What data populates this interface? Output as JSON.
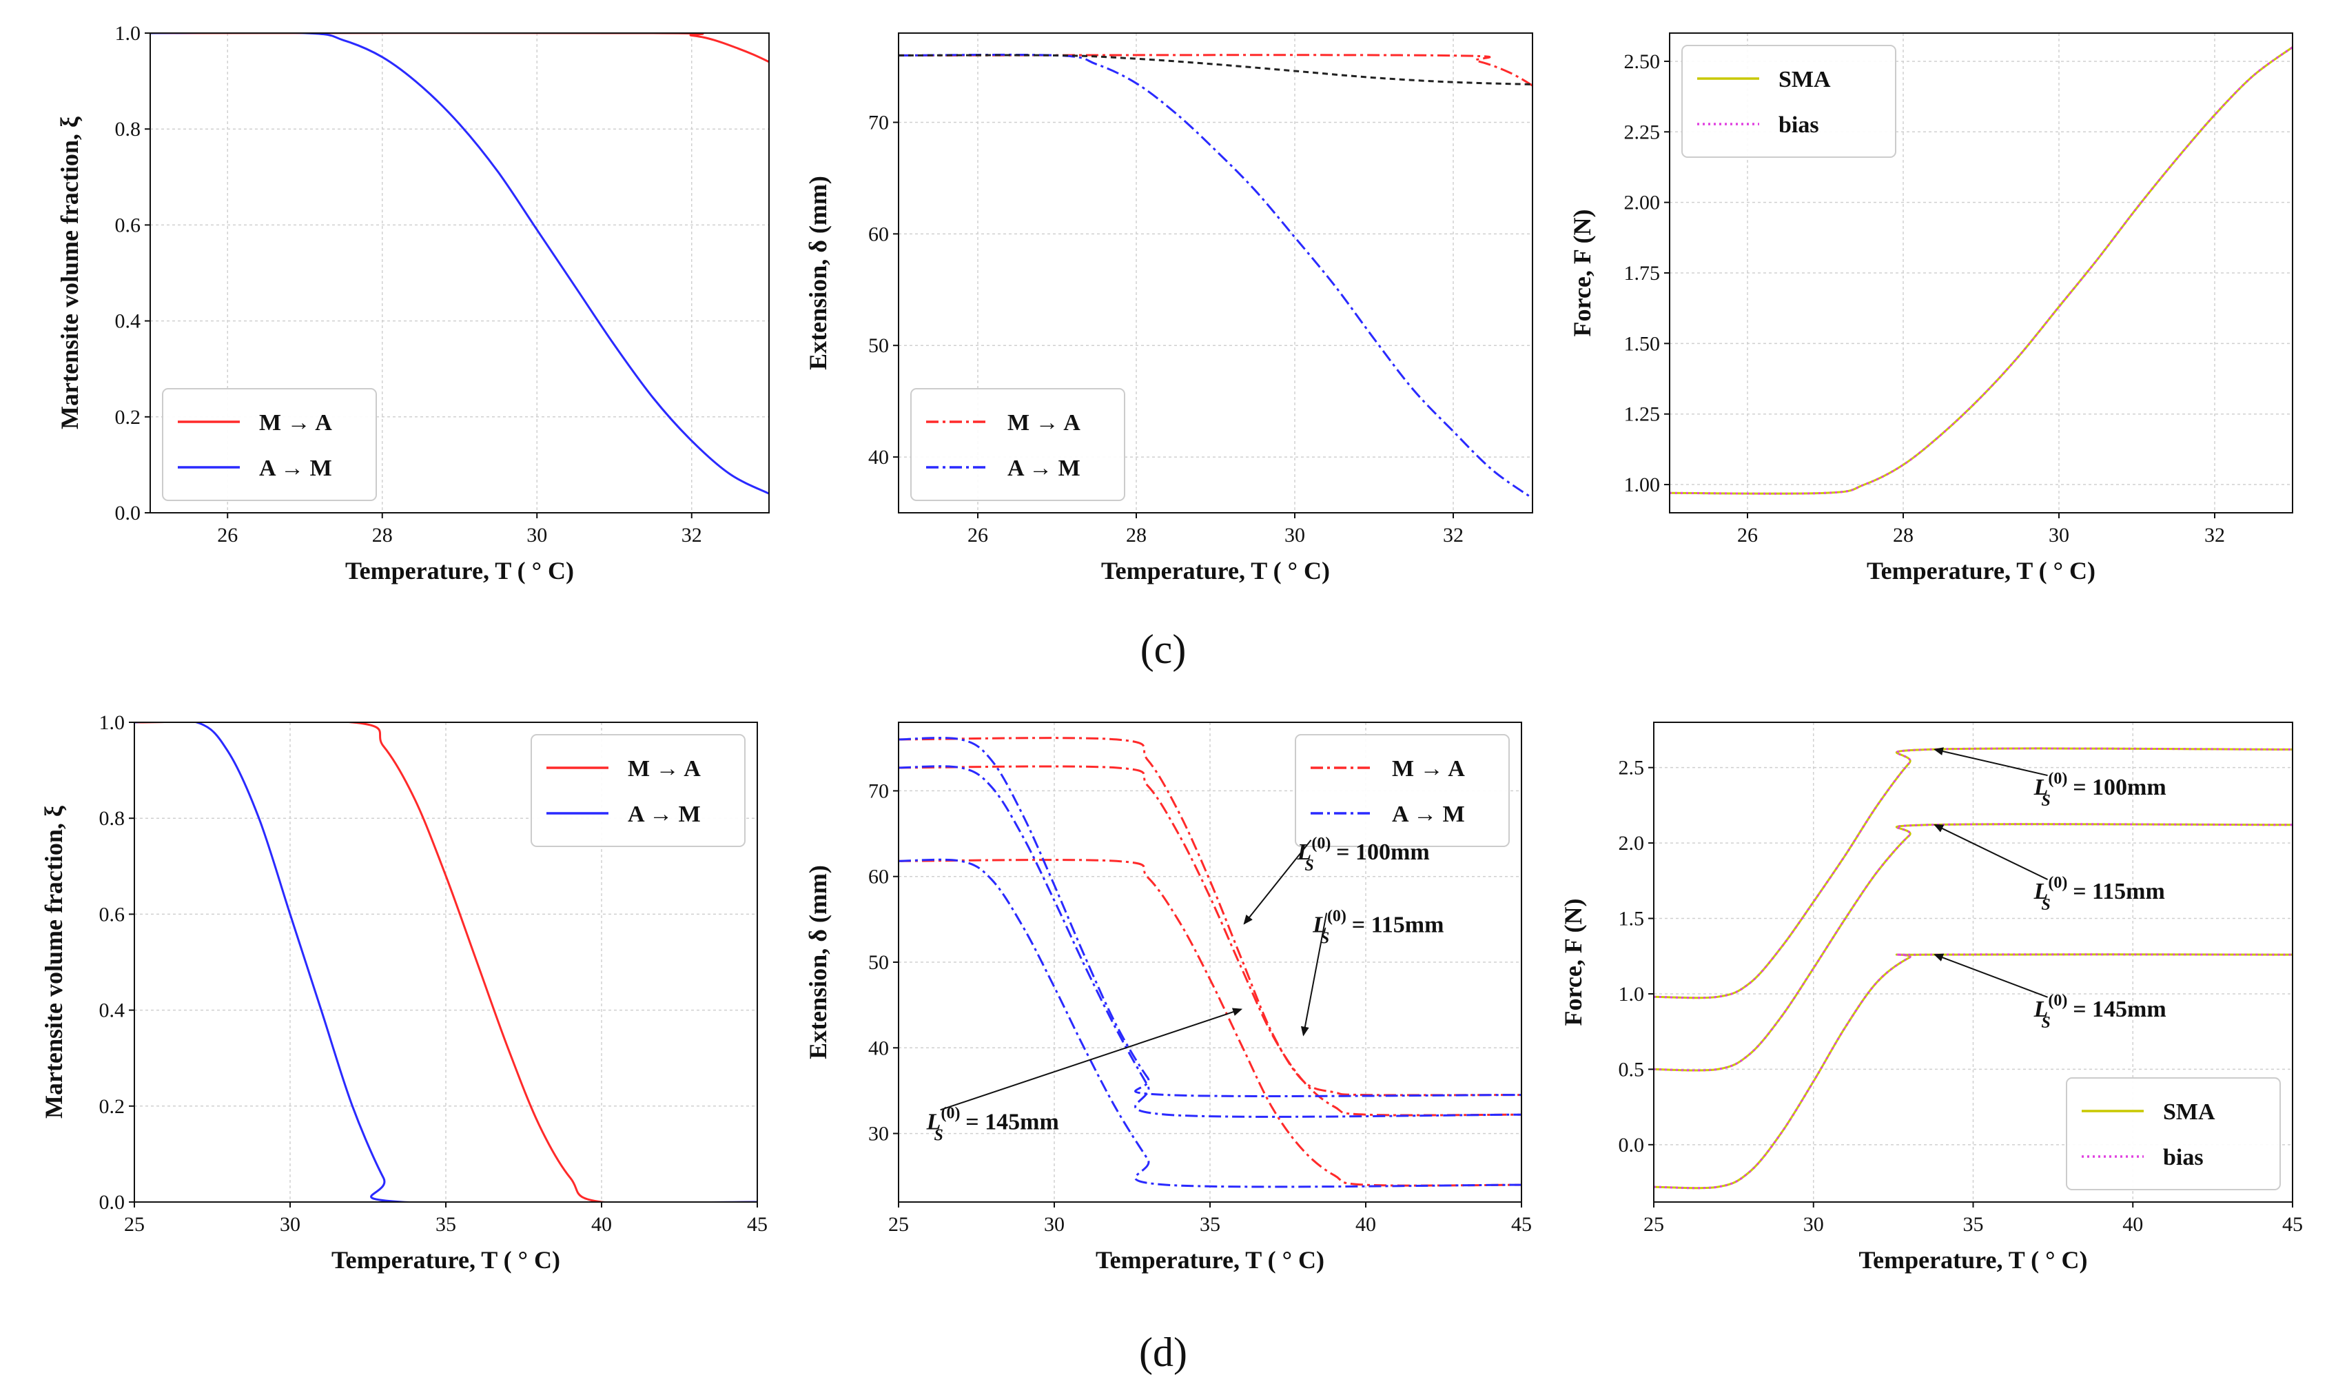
{
  "panel_labels": [
    "(c)",
    "(d)"
  ],
  "chart_data": [
    {
      "id": "c1",
      "type": "line",
      "xlabel": "Temperature, T ( ° C)",
      "ylabel": "Martensite volume fraction, ξ",
      "xlim": [
        25,
        33
      ],
      "ylim": [
        0,
        1.0
      ],
      "xticks": [
        26,
        28,
        30,
        32
      ],
      "yticks": [
        0.0,
        0.2,
        0.4,
        0.6,
        0.8,
        1.0
      ],
      "ytick_decimals": 1,
      "grid": true,
      "legend": "lower-left",
      "series": [
        {
          "name": "M → A",
          "color": "#ff2a2a",
          "dash": "solid",
          "x": [
            25,
            31.5,
            32.0,
            32.3,
            32.6,
            32.8,
            33.0
          ],
          "y": [
            1,
            1,
            0.995,
            0.985,
            0.968,
            0.955,
            0.94
          ]
        },
        {
          "name": "A → M",
          "color": "#2a2aff",
          "dash": "solid",
          "x": [
            25,
            27.0,
            27.5,
            28,
            28.5,
            29,
            29.5,
            30,
            30.5,
            31,
            31.5,
            32,
            32.5,
            33
          ],
          "y": [
            1,
            1,
            0.985,
            0.95,
            0.89,
            0.81,
            0.71,
            0.59,
            0.47,
            0.35,
            0.24,
            0.15,
            0.08,
            0.04
          ]
        }
      ]
    },
    {
      "id": "c2",
      "type": "line",
      "xlabel": "Temperature, T ( ° C)",
      "ylabel": "Extension, δ (mm)",
      "xlim": [
        25,
        33
      ],
      "ylim": [
        35,
        78
      ],
      "xticks": [
        26,
        28,
        30,
        32
      ],
      "yticks": [
        40,
        50,
        60,
        70
      ],
      "ytick_decimals": 0,
      "grid": true,
      "legend": "lower-left",
      "series": [
        {
          "name": "M → A",
          "color": "#ff2a2a",
          "dash": "18,6,4,6",
          "x": [
            25,
            31.8,
            32.3,
            32.7,
            33.0
          ],
          "y": [
            76,
            76,
            75.5,
            74.5,
            73.3
          ]
        },
        {
          "name": "A → M",
          "color": "#2a2aff",
          "dash": "18,6,4,6",
          "x": [
            25,
            27.0,
            27.5,
            28,
            28.5,
            29,
            29.5,
            30,
            30.5,
            31,
            31.5,
            32,
            32.5,
            33
          ],
          "y": [
            76,
            76,
            75.2,
            73.5,
            70.8,
            67.5,
            63.9,
            59.7,
            55.4,
            50.6,
            46.0,
            42.3,
            38.8,
            36.3
          ]
        },
        {
          "name": "",
          "color": "#222222",
          "dash": "8,6",
          "x": [
            25,
            27.0,
            28,
            29,
            30,
            31,
            32,
            33
          ],
          "y": [
            76,
            76,
            75.7,
            75.2,
            74.6,
            74.0,
            73.6,
            73.4
          ]
        }
      ]
    },
    {
      "id": "c3",
      "type": "line",
      "xlabel": "Temperature, T ( ° C)",
      "ylabel": "Force, F (N)",
      "xlim": [
        25,
        33
      ],
      "ylim": [
        0.9,
        2.6
      ],
      "xticks": [
        26,
        28,
        30,
        32
      ],
      "yticks": [
        1.0,
        1.25,
        1.5,
        1.75,
        2.0,
        2.25,
        2.5
      ],
      "ytick_decimals": 2,
      "grid": true,
      "legend": "upper-left",
      "series": [
        {
          "name": "SMA",
          "color": "#c8c800",
          "dash": "solid",
          "x": [
            25,
            27.0,
            27.5,
            28,
            28.5,
            29,
            29.5,
            30,
            30.5,
            31,
            31.5,
            32,
            32.5,
            33
          ],
          "y": [
            0.97,
            0.97,
            1.0,
            1.07,
            1.18,
            1.31,
            1.46,
            1.63,
            1.8,
            1.98,
            2.15,
            2.31,
            2.45,
            2.55
          ]
        },
        {
          "name": "bias",
          "color": "#e040e0",
          "dash": "3,5",
          "x": [
            25,
            27.0,
            27.5,
            28,
            28.5,
            29,
            29.5,
            30,
            30.5,
            31,
            31.5,
            32,
            32.5,
            33
          ],
          "y": [
            0.97,
            0.97,
            1.0,
            1.07,
            1.18,
            1.31,
            1.46,
            1.63,
            1.8,
            1.98,
            2.15,
            2.31,
            2.45,
            2.55
          ]
        }
      ]
    },
    {
      "id": "d1",
      "type": "line",
      "xlabel": "Temperature, T ( ° C)",
      "ylabel": "Martensite volume fraction, ξ",
      "xlim": [
        25,
        45
      ],
      "ylim": [
        0,
        1.0
      ],
      "xticks": [
        25,
        30,
        35,
        40,
        45
      ],
      "yticks": [
        0.0,
        0.2,
        0.4,
        0.6,
        0.8,
        1.0
      ],
      "ytick_decimals": 1,
      "grid": true,
      "legend": "upper-right",
      "series": [
        {
          "name": "M → A",
          "color": "#ff2a2a",
          "dash": "solid",
          "x": [
            25,
            32.0,
            33,
            34,
            35,
            36,
            37,
            38,
            39,
            40,
            45
          ],
          "y": [
            1,
            1,
            0.95,
            0.84,
            0.68,
            0.5,
            0.32,
            0.16,
            0.05,
            0,
            0
          ]
        },
        {
          "name": "A → M",
          "color": "#2a2aff",
          "dash": "solid",
          "x": [
            25,
            27.0,
            28,
            29,
            30,
            31,
            32,
            33,
            33.6,
            45
          ],
          "y": [
            1,
            1,
            0.94,
            0.8,
            0.6,
            0.4,
            0.2,
            0.05,
            0,
            0
          ]
        }
      ]
    },
    {
      "id": "d2",
      "type": "line",
      "xlabel": "Temperature, T ( ° C)",
      "ylabel": "Extension, δ (mm)",
      "xlim": [
        25,
        45
      ],
      "ylim": [
        22,
        78
      ],
      "xticks": [
        25,
        30,
        35,
        40,
        45
      ],
      "yticks": [
        30,
        40,
        50,
        60,
        70
      ],
      "ytick_decimals": 0,
      "grid": true,
      "legend": "upper-right",
      "series": [
        {
          "name": "M → A",
          "color": "#ff2a2a",
          "dash": "18,6,4,6",
          "x": [
            25,
            32.0,
            33,
            34,
            35,
            36,
            37,
            38,
            39,
            40,
            45
          ],
          "y": [
            76,
            76,
            73.6,
            67.5,
            59.5,
            50.5,
            41.7,
            36.1,
            34.8,
            34.5,
            34.5
          ]
        },
        {
          "name": "",
          "color": "#ff2a2a",
          "dash": "18,6,4,6",
          "x": [
            25,
            32.0,
            33,
            34,
            35,
            36,
            37,
            38,
            39,
            40,
            45
          ],
          "y": [
            72.7,
            72.7,
            70.6,
            64.9,
            57.6,
            49.4,
            41.5,
            36.1,
            33.1,
            32.2,
            32.2
          ]
        },
        {
          "name": "",
          "color": "#ff2a2a",
          "dash": "18,6,4,6",
          "x": [
            25,
            32.0,
            33,
            34,
            35,
            36,
            37,
            38,
            39,
            40,
            45
          ],
          "y": [
            61.8,
            61.8,
            59.9,
            54.8,
            48.0,
            40.4,
            33.0,
            28.0,
            25.1,
            24.0,
            24.0
          ]
        },
        {
          "name": "A → M",
          "color": "#2a2aff",
          "dash": "18,6,4,6",
          "x": [
            25,
            27.0,
            28,
            29,
            30,
            31,
            32,
            33,
            33.6,
            45
          ],
          "y": [
            76,
            76,
            73.5,
            67.1,
            59.0,
            50.5,
            42.6,
            36.5,
            34.5,
            34.5
          ]
        },
        {
          "name": "",
          "color": "#2a2aff",
          "dash": "18,6,4,6",
          "x": [
            25,
            27.0,
            28,
            29,
            30,
            31,
            32,
            33,
            33.6,
            45
          ],
          "y": [
            72.7,
            72.7,
            70.4,
            64.6,
            57.2,
            49.4,
            42.1,
            35.6,
            32.2,
            32.2
          ]
        },
        {
          "name": "",
          "color": "#2a2aff",
          "dash": "18,6,4,6",
          "x": [
            25,
            27.0,
            28,
            29,
            30,
            31,
            32,
            33,
            33.6,
            45
          ],
          "y": [
            61.8,
            61.8,
            59.6,
            54.1,
            47.1,
            39.7,
            32.8,
            27.0,
            24.0,
            24.0
          ]
        }
      ],
      "annotations": [
        {
          "text": "L(0)S = 100mm",
          "base": "L",
          "sup": "(0)",
          "sub": "S",
          "rest": " = 100mm",
          "x": 37.8,
          "y": 62,
          "arrow_x": 36.1,
          "arrow_y": 54.5
        },
        {
          "text": "L(0)S = 115mm",
          "base": "L",
          "sup": "(0)",
          "sub": "S",
          "rest": " = 115mm",
          "x": 38.3,
          "y": 53.5,
          "arrow_x": 38.0,
          "arrow_y": 41.5
        },
        {
          "text": "L(0)S = 145mm",
          "base": "L",
          "sup": "(0)",
          "sub": "S",
          "rest": " = 145mm",
          "x": 25.9,
          "y": 30.5,
          "arrow_x": 36.0,
          "arrow_y": 44.5
        }
      ]
    },
    {
      "id": "d3",
      "type": "line",
      "xlabel": "Temperature, T ( ° C)",
      "ylabel": "Force, F (N)",
      "xlim": [
        25,
        45
      ],
      "ylim": [
        -0.38,
        2.8
      ],
      "xticks": [
        25,
        30,
        35,
        40,
        45
      ],
      "yticks": [
        0.0,
        0.5,
        1.0,
        1.5,
        2.0,
        2.5
      ],
      "ytick_decimals": 1,
      "grid": true,
      "legend": "lower-right",
      "series": [
        {
          "name": "SMA",
          "color": "#c8c800",
          "dash": "solid",
          "x": [
            25,
            27.0,
            28,
            29,
            30,
            31,
            32,
            33,
            33.6,
            45
          ],
          "y": [
            0.98,
            0.98,
            1.07,
            1.31,
            1.61,
            1.92,
            2.25,
            2.53,
            2.62,
            2.62
          ]
        },
        {
          "name": "",
          "color": "#c8c800",
          "dash": "solid",
          "x": [
            25,
            27.0,
            28,
            29,
            30,
            31,
            32,
            33,
            33.6,
            45
          ],
          "y": [
            0.5,
            0.5,
            0.6,
            0.85,
            1.17,
            1.5,
            1.81,
            2.05,
            2.12,
            2.12
          ]
        },
        {
          "name": "",
          "color": "#c8c800",
          "dash": "solid",
          "x": [
            25,
            27.0,
            28,
            29,
            30,
            31,
            32,
            33,
            33.6,
            45
          ],
          "y": [
            -0.28,
            -0.28,
            -0.18,
            0.08,
            0.42,
            0.78,
            1.08,
            1.24,
            1.26,
            1.26
          ]
        },
        {
          "name": "bias",
          "color": "#e040e0",
          "dash": "3,5",
          "x": [
            25,
            27.0,
            28,
            29,
            30,
            31,
            32,
            33,
            33.6,
            45
          ],
          "y": [
            0.98,
            0.98,
            1.07,
            1.31,
            1.61,
            1.92,
            2.25,
            2.53,
            2.62,
            2.62
          ]
        },
        {
          "name": "",
          "color": "#e040e0",
          "dash": "3,5",
          "x": [
            25,
            27.0,
            28,
            29,
            30,
            31,
            32,
            33,
            33.6,
            45
          ],
          "y": [
            0.5,
            0.5,
            0.6,
            0.85,
            1.17,
            1.5,
            1.81,
            2.05,
            2.12,
            2.12
          ]
        },
        {
          "name": "",
          "color": "#e040e0",
          "dash": "3,5",
          "x": [
            25,
            27.0,
            28,
            29,
            30,
            31,
            32,
            33,
            33.6,
            45
          ],
          "y": [
            -0.28,
            -0.28,
            -0.18,
            0.08,
            0.42,
            0.78,
            1.08,
            1.24,
            1.26,
            1.26
          ]
        }
      ],
      "annotations": [
        {
          "text": "L(0)S = 100mm",
          "base": "L",
          "sup": "(0)",
          "sub": "S",
          "rest": " = 100mm",
          "x": 36.9,
          "y": 2.32,
          "arrow_x": 33.8,
          "arrow_y": 2.62
        },
        {
          "text": "L(0)S = 115mm",
          "base": "L",
          "sup": "(0)",
          "sub": "S",
          "rest": " = 115mm",
          "x": 36.9,
          "y": 1.63,
          "arrow_x": 33.8,
          "arrow_y": 2.12
        },
        {
          "text": "L(0)S = 145mm",
          "base": "L",
          "sup": "(0)",
          "sub": "S",
          "rest": " = 145mm",
          "x": 36.9,
          "y": 0.85,
          "arrow_x": 33.8,
          "arrow_y": 1.26
        }
      ]
    }
  ]
}
